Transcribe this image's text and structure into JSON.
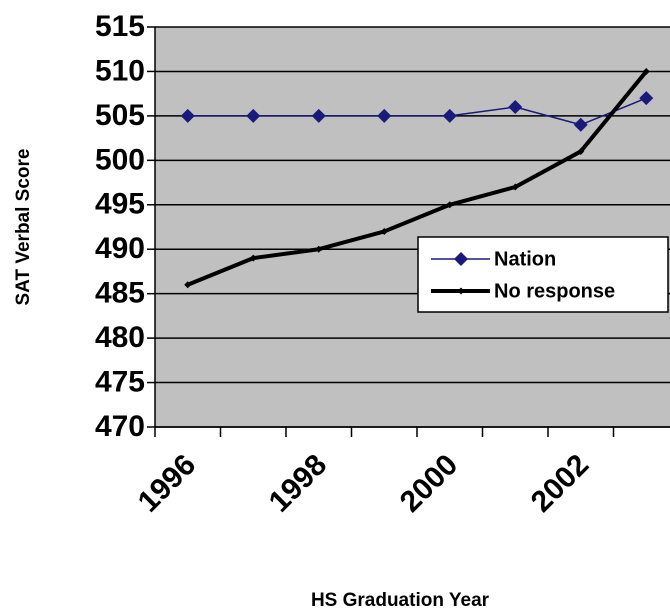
{
  "chart_data": {
    "type": "line",
    "categories": [
      "1996",
      null,
      "1998",
      null,
      "2000",
      null,
      "2002",
      null
    ],
    "series": [
      {
        "name": "Nation",
        "color": "#1a1a7a",
        "values": [
          505,
          505,
          505,
          505,
          505,
          506,
          504,
          507
        ]
      },
      {
        "name": "No response",
        "color": "#000000",
        "values": [
          486,
          489,
          490,
          492,
          495,
          497,
          501,
          510
        ]
      }
    ],
    "ylim": [
      470,
      515
    ],
    "yticks": [
      470,
      475,
      480,
      485,
      490,
      495,
      500,
      505,
      510,
      515
    ],
    "x_label": "HS Graduation Year",
    "y_label": "SAT Verbal Score",
    "grid": true,
    "legend": "right"
  }
}
